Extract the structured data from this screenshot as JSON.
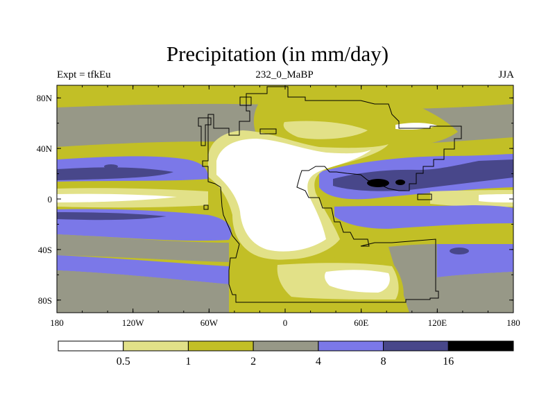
{
  "title": "Precipitation (in mm/day)",
  "subtitle_left": "Expt = tfkEu",
  "subtitle_center": "232_0_MaBP",
  "subtitle_right": "JJA",
  "map": {
    "projection": "cylindrical-equidistant",
    "lon_range": [
      -180,
      180
    ],
    "lat_range": [
      -90,
      90
    ],
    "lon_tick_labels": [
      "180",
      "120W",
      "60W",
      "0",
      "60E",
      "120E",
      "180"
    ],
    "lat_tick_labels": [
      "80N",
      "40N",
      "0",
      "40S",
      "80S"
    ]
  },
  "colorbar": {
    "thresholds": [
      "0.5",
      "1",
      "2",
      "4",
      "8",
      "16"
    ],
    "colors": [
      "#ffffff",
      "#e2e188",
      "#c2bf26",
      "#979887",
      "#7b78e8",
      "#48478a",
      "#000000"
    ]
  }
}
